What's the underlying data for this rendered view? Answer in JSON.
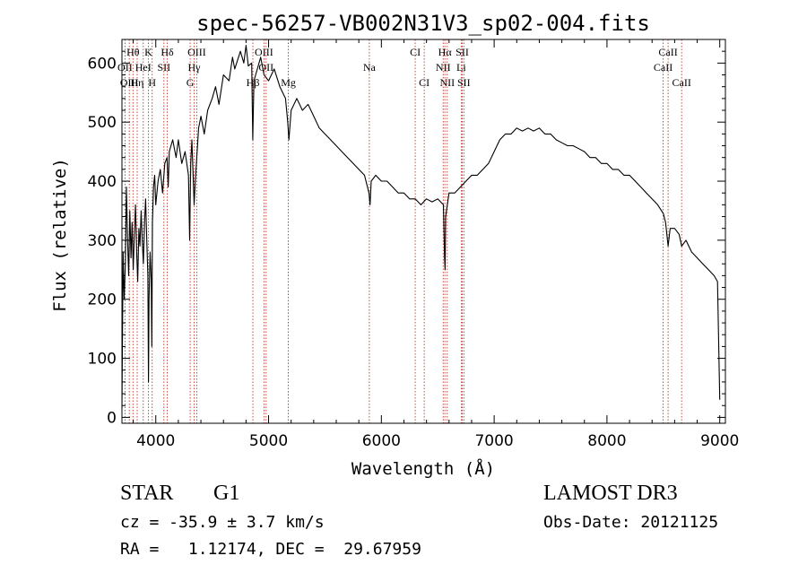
{
  "chart_data": {
    "type": "line",
    "title": "spec-56257-VB002N31V3_sp02-004.fits",
    "xlabel": "Wavelength (Å)",
    "ylabel": "Flux (relative)",
    "xlim": [
      3700,
      9050
    ],
    "ylim": [
      -10,
      640
    ],
    "xticks": [
      4000,
      5000,
      6000,
      7000,
      8000,
      9000
    ],
    "yticks": [
      0,
      100,
      200,
      300,
      400,
      500,
      600
    ],
    "grid": false,
    "series": [
      {
        "name": "flux",
        "points": [
          [
            3700,
            15
          ],
          [
            3710,
            280
          ],
          [
            3720,
            200
          ],
          [
            3730,
            260
          ],
          [
            3740,
            390
          ],
          [
            3750,
            300
          ],
          [
            3760,
            240
          ],
          [
            3770,
            350
          ],
          [
            3780,
            270
          ],
          [
            3790,
            330
          ],
          [
            3800,
            250
          ],
          [
            3810,
            310
          ],
          [
            3820,
            360
          ],
          [
            3830,
            280
          ],
          [
            3840,
            230
          ],
          [
            3850,
            320
          ],
          [
            3860,
            290
          ],
          [
            3870,
            350
          ],
          [
            3880,
            300
          ],
          [
            3890,
            260
          ],
          [
            3900,
            330
          ],
          [
            3910,
            370
          ],
          [
            3920,
            300
          ],
          [
            3930,
            240
          ],
          [
            3935,
            60
          ],
          [
            3940,
            200
          ],
          [
            3950,
            280
          ],
          [
            3960,
            230
          ],
          [
            3965,
            120
          ],
          [
            3970,
            330
          ],
          [
            3980,
            390
          ],
          [
            3990,
            410
          ],
          [
            4000,
            360
          ],
          [
            4020,
            400
          ],
          [
            4040,
            420
          ],
          [
            4060,
            380
          ],
          [
            4080,
            430
          ],
          [
            4100,
            440
          ],
          [
            4110,
            390
          ],
          [
            4120,
            450
          ],
          [
            4150,
            470
          ],
          [
            4180,
            440
          ],
          [
            4200,
            470
          ],
          [
            4230,
            430
          ],
          [
            4260,
            450
          ],
          [
            4290,
            410
          ],
          [
            4300,
            300
          ],
          [
            4310,
            430
          ],
          [
            4320,
            470
          ],
          [
            4340,
            360
          ],
          [
            4350,
            400
          ],
          [
            4380,
            490
          ],
          [
            4400,
            510
          ],
          [
            4430,
            480
          ],
          [
            4460,
            520
          ],
          [
            4500,
            540
          ],
          [
            4530,
            560
          ],
          [
            4560,
            530
          ],
          [
            4600,
            580
          ],
          [
            4650,
            570
          ],
          [
            4680,
            610
          ],
          [
            4700,
            590
          ],
          [
            4750,
            620
          ],
          [
            4780,
            600
          ],
          [
            4800,
            630
          ],
          [
            4820,
            595
          ],
          [
            4850,
            600
          ],
          [
            4860,
            470
          ],
          [
            4870,
            570
          ],
          [
            4900,
            590
          ],
          [
            4930,
            610
          ],
          [
            4960,
            580
          ],
          [
            5000,
            570
          ],
          [
            5050,
            590
          ],
          [
            5100,
            560
          ],
          [
            5150,
            540
          ],
          [
            5170,
            500
          ],
          [
            5180,
            470
          ],
          [
            5200,
            520
          ],
          [
            5250,
            540
          ],
          [
            5300,
            520
          ],
          [
            5350,
            530
          ],
          [
            5400,
            510
          ],
          [
            5450,
            490
          ],
          [
            5500,
            480
          ],
          [
            5550,
            470
          ],
          [
            5600,
            460
          ],
          [
            5650,
            450
          ],
          [
            5700,
            440
          ],
          [
            5750,
            430
          ],
          [
            5800,
            420
          ],
          [
            5850,
            410
          ],
          [
            5890,
            380
          ],
          [
            5900,
            360
          ],
          [
            5910,
            400
          ],
          [
            5950,
            410
          ],
          [
            6000,
            400
          ],
          [
            6050,
            400
          ],
          [
            6100,
            390
          ],
          [
            6150,
            380
          ],
          [
            6200,
            380
          ],
          [
            6250,
            370
          ],
          [
            6300,
            370
          ],
          [
            6350,
            360
          ],
          [
            6400,
            370
          ],
          [
            6450,
            365
          ],
          [
            6500,
            370
          ],
          [
            6550,
            360
          ],
          [
            6560,
            270
          ],
          [
            6565,
            250
          ],
          [
            6570,
            340
          ],
          [
            6600,
            380
          ],
          [
            6650,
            380
          ],
          [
            6700,
            390
          ],
          [
            6750,
            400
          ],
          [
            6800,
            410
          ],
          [
            6850,
            410
          ],
          [
            6900,
            420
          ],
          [
            6950,
            430
          ],
          [
            7000,
            450
          ],
          [
            7050,
            470
          ],
          [
            7100,
            480
          ],
          [
            7150,
            480
          ],
          [
            7200,
            490
          ],
          [
            7250,
            485
          ],
          [
            7300,
            490
          ],
          [
            7350,
            485
          ],
          [
            7400,
            490
          ],
          [
            7450,
            480
          ],
          [
            7500,
            480
          ],
          [
            7550,
            470
          ],
          [
            7600,
            465
          ],
          [
            7650,
            460
          ],
          [
            7700,
            460
          ],
          [
            7750,
            455
          ],
          [
            7800,
            450
          ],
          [
            7850,
            440
          ],
          [
            7900,
            440
          ],
          [
            7950,
            430
          ],
          [
            8000,
            430
          ],
          [
            8050,
            420
          ],
          [
            8100,
            420
          ],
          [
            8150,
            410
          ],
          [
            8200,
            410
          ],
          [
            8250,
            400
          ],
          [
            8300,
            390
          ],
          [
            8350,
            380
          ],
          [
            8400,
            370
          ],
          [
            8450,
            360
          ],
          [
            8500,
            345
          ],
          [
            8520,
            330
          ],
          [
            8542,
            290
          ],
          [
            8560,
            320
          ],
          [
            8600,
            320
          ],
          [
            8640,
            310
          ],
          [
            8662,
            290
          ],
          [
            8700,
            300
          ],
          [
            8750,
            280
          ],
          [
            8800,
            270
          ],
          [
            8850,
            260
          ],
          [
            8900,
            250
          ],
          [
            8950,
            240
          ],
          [
            8980,
            230
          ],
          [
            9000,
            30
          ]
        ]
      }
    ],
    "line_labels": [
      {
        "label": "Hθ",
        "wavelength": 3798,
        "row": 1
      },
      {
        "label": "K",
        "wavelength": 3934,
        "row": 1
      },
      {
        "label": "Hδ",
        "wavelength": 4102,
        "row": 1
      },
      {
        "label": "OIII",
        "wavelength": 4363,
        "row": 1
      },
      {
        "label": "OIII",
        "wavelength": 4959,
        "row": 1
      },
      {
        "label": "CI",
        "wavelength": 6300,
        "row": 1
      },
      {
        "label": "Hα",
        "wavelength": 6563,
        "row": 1
      },
      {
        "label": "SII",
        "wavelength": 6717,
        "row": 1
      },
      {
        "label": "CaII",
        "wavelength": 8542,
        "row": 1
      },
      {
        "label": "OII",
        "wavelength": 3727,
        "row": 2
      },
      {
        "label": "HeI",
        "wavelength": 3889,
        "row": 2
      },
      {
        "label": "SII",
        "wavelength": 4072,
        "row": 2
      },
      {
        "label": "Hγ",
        "wavelength": 4340,
        "row": 2
      },
      {
        "label": "OII",
        "wavelength": 4978,
        "row": 2
      },
      {
        "label": "Na",
        "wavelength": 5893,
        "row": 2
      },
      {
        "label": "NII",
        "wavelength": 6548,
        "row": 2
      },
      {
        "label": "Li",
        "wavelength": 6708,
        "row": 2
      },
      {
        "label": "CaII",
        "wavelength": 8498,
        "row": 2
      },
      {
        "label": "OIII",
        "wavelength": 3765,
        "row": 3
      },
      {
        "label": "Hη",
        "wavelength": 3835,
        "row": 3
      },
      {
        "label": "H",
        "wavelength": 3968,
        "row": 3
      },
      {
        "label": "G",
        "wavelength": 4305,
        "row": 3
      },
      {
        "label": "Hβ",
        "wavelength": 4861,
        "row": 3
      },
      {
        "label": "Mg",
        "wavelength": 5175,
        "row": 3
      },
      {
        "label": "CI",
        "wavelength": 6380,
        "row": 3
      },
      {
        "label": "NII",
        "wavelength": 6584,
        "row": 3
      },
      {
        "label": "SII",
        "wavelength": 6731,
        "row": 3
      },
      {
        "label": "CaII",
        "wavelength": 8662,
        "row": 3
      }
    ],
    "line_markers": [
      3727,
      3765,
      3798,
      3835,
      3889,
      3934,
      3968,
      4072,
      4102,
      4305,
      4340,
      4363,
      4861,
      4959,
      4978,
      5175,
      5893,
      6300,
      6380,
      6548,
      6563,
      6584,
      6708,
      6717,
      6731,
      8498,
      8542,
      8662
    ],
    "colors": {
      "line": "#000000",
      "marker": "#c0392b",
      "axis": "#000000"
    }
  },
  "info": {
    "object_type": "STAR",
    "subclass": "G1",
    "survey": "LAMOST DR3",
    "velocity": "cz = -35.9 ± 3.7 km/s",
    "obs_date": "Obs-Date: 20121125",
    "coords": "RA =   1.12174, DEC =  29.67959"
  }
}
